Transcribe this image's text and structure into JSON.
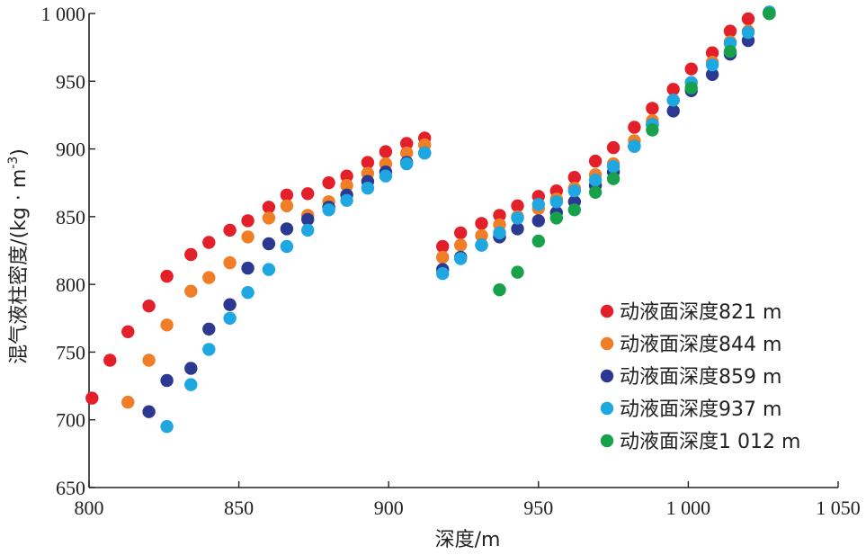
{
  "chart_data": {
    "type": "scatter",
    "title": "",
    "xlabel": "深度/m",
    "ylabel_main": "混气液柱密度/(kg · m",
    "ylabel_sup": "-3",
    "ylabel_close": ")",
    "xlim": [
      800,
      1050
    ],
    "ylim": [
      650,
      1000
    ],
    "x_ticks": [
      800,
      850,
      900,
      950,
      1000,
      1050
    ],
    "x_tick_labels": [
      "800",
      "850",
      "900",
      "950",
      "1 000",
      "1 050"
    ],
    "y_ticks": [
      650,
      700,
      750,
      800,
      850,
      900,
      950,
      1000
    ],
    "y_tick_labels": [
      "650",
      "700",
      "750",
      "800",
      "850",
      "900",
      "950",
      "1 000"
    ],
    "grid": false,
    "legend_position": "bottom-right",
    "series": [
      {
        "name": "动液面深度821 m",
        "color": "#e3202a",
        "points": [
          [
            801,
            716
          ],
          [
            807,
            744
          ],
          [
            813,
            765
          ],
          [
            820,
            784
          ],
          [
            826,
            806
          ],
          [
            834,
            822
          ],
          [
            840,
            831
          ],
          [
            847,
            840
          ],
          [
            853,
            847
          ],
          [
            860,
            857
          ],
          [
            866,
            866
          ],
          [
            873,
            867
          ],
          [
            880,
            875
          ],
          [
            886,
            880
          ],
          [
            893,
            890
          ],
          [
            899,
            898
          ],
          [
            906,
            904
          ],
          [
            912,
            908
          ],
          [
            918,
            828
          ],
          [
            924,
            838
          ],
          [
            931,
            845
          ],
          [
            937,
            851
          ],
          [
            943,
            858
          ],
          [
            950,
            865
          ],
          [
            956,
            869
          ],
          [
            962,
            879
          ],
          [
            969,
            891
          ],
          [
            975,
            901
          ],
          [
            982,
            916
          ],
          [
            988,
            930
          ],
          [
            995,
            944
          ],
          [
            1001,
            959
          ],
          [
            1008,
            971
          ],
          [
            1014,
            987
          ],
          [
            1020,
            996
          ],
          [
            1027,
            1001
          ]
        ]
      },
      {
        "name": "动液面深度844 m",
        "color": "#f07e26",
        "points": [
          [
            813,
            713
          ],
          [
            820,
            744
          ],
          [
            826,
            770
          ],
          [
            834,
            795
          ],
          [
            840,
            805
          ],
          [
            847,
            816
          ],
          [
            853,
            835
          ],
          [
            860,
            849
          ],
          [
            866,
            858
          ],
          [
            873,
            851
          ],
          [
            880,
            861
          ],
          [
            886,
            873
          ],
          [
            893,
            882
          ],
          [
            899,
            889
          ],
          [
            906,
            897
          ],
          [
            912,
            903
          ],
          [
            918,
            820
          ],
          [
            924,
            829
          ],
          [
            931,
            836
          ],
          [
            937,
            844
          ],
          [
            943,
            850
          ],
          [
            950,
            856
          ],
          [
            956,
            863
          ],
          [
            962,
            871
          ],
          [
            969,
            881
          ],
          [
            975,
            889
          ],
          [
            982,
            906
          ],
          [
            988,
            921
          ],
          [
            995,
            936
          ],
          [
            1001,
            949
          ],
          [
            1008,
            964
          ],
          [
            1014,
            979
          ],
          [
            1020,
            987
          ],
          [
            1027,
            1000
          ]
        ]
      },
      {
        "name": "动液面深度859 m",
        "color": "#2b3990",
        "points": [
          [
            820,
            706
          ],
          [
            826,
            729
          ],
          [
            834,
            738
          ],
          [
            840,
            767
          ],
          [
            847,
            785
          ],
          [
            853,
            812
          ],
          [
            860,
            830
          ],
          [
            866,
            841
          ],
          [
            873,
            848
          ],
          [
            880,
            857
          ],
          [
            886,
            866
          ],
          [
            893,
            876
          ],
          [
            899,
            883
          ],
          [
            906,
            890
          ],
          [
            912,
            897
          ],
          [
            918,
            811
          ],
          [
            924,
            820
          ],
          [
            931,
            829
          ],
          [
            937,
            835
          ],
          [
            943,
            841
          ],
          [
            950,
            847
          ],
          [
            956,
            853
          ],
          [
            962,
            861
          ],
          [
            969,
            873
          ],
          [
            975,
            883
          ],
          [
            982,
            902
          ],
          [
            988,
            918
          ],
          [
            995,
            928
          ],
          [
            1001,
            943
          ],
          [
            1008,
            955
          ],
          [
            1014,
            970
          ],
          [
            1020,
            980
          ],
          [
            1027,
            1000
          ]
        ]
      },
      {
        "name": "动液面深度937 m",
        "color": "#1ea7e1",
        "points": [
          [
            826,
            695
          ],
          [
            834,
            726
          ],
          [
            840,
            752
          ],
          [
            847,
            775
          ],
          [
            853,
            794
          ],
          [
            860,
            811
          ],
          [
            866,
            828
          ],
          [
            873,
            840
          ],
          [
            880,
            855
          ],
          [
            886,
            862
          ],
          [
            893,
            871
          ],
          [
            899,
            880
          ],
          [
            906,
            889
          ],
          [
            912,
            897
          ],
          [
            918,
            808
          ],
          [
            924,
            819
          ],
          [
            931,
            829
          ],
          [
            937,
            838
          ],
          [
            943,
            849
          ],
          [
            950,
            859
          ],
          [
            956,
            861
          ],
          [
            962,
            869
          ],
          [
            969,
            877
          ],
          [
            975,
            887
          ],
          [
            982,
            902
          ],
          [
            988,
            918
          ],
          [
            995,
            936
          ],
          [
            1001,
            949
          ],
          [
            1008,
            962
          ],
          [
            1014,
            978
          ],
          [
            1020,
            986
          ],
          [
            1027,
            1001
          ]
        ]
      },
      {
        "name": "动液面深度1 012 m",
        "color": "#17a14a",
        "points": [
          [
            937,
            796
          ],
          [
            943,
            809
          ],
          [
            950,
            832
          ],
          [
            956,
            849
          ],
          [
            962,
            855
          ],
          [
            969,
            868
          ],
          [
            975,
            878
          ],
          [
            988,
            914
          ],
          [
            1001,
            945
          ],
          [
            1014,
            972
          ],
          [
            1027,
            1000
          ]
        ]
      }
    ]
  }
}
